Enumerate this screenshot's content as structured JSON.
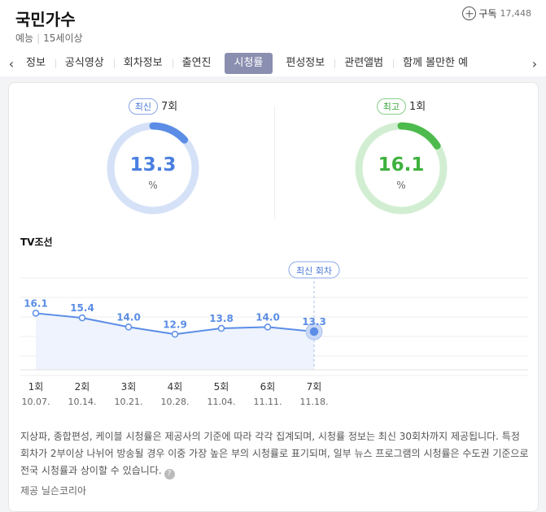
{
  "header": {
    "title": "국민가수",
    "genre": "예능",
    "rating": "15세이상",
    "subscribe_label": "구독",
    "subscribe_count": "17,448"
  },
  "tabs": [
    "정보",
    "공식영상",
    "회차정보",
    "출연진",
    "시청률",
    "편성정보",
    "관련앨범",
    "함께 볼만한 예"
  ],
  "active_tab": "시청률",
  "summary": {
    "latest": {
      "badge": "최신",
      "episode": "7회",
      "value": 13.3,
      "value_text": "13.3",
      "unit": "%",
      "color": "#5b8de6",
      "track_color": "#d5e1f7"
    },
    "best": {
      "badge": "최고",
      "episode": "1회",
      "value": 16.1,
      "value_text": "16.1",
      "unit": "%",
      "color": "#4dba4d",
      "track_color": "#d2eed2"
    }
  },
  "channel": "TV조선",
  "latest_marker_label": "최신 회차",
  "chart_data": {
    "type": "line",
    "categories": [
      "1회",
      "2회",
      "3회",
      "4회",
      "5회",
      "6회",
      "7회"
    ],
    "dates": [
      "10.07.",
      "10.14.",
      "10.21.",
      "10.28.",
      "11.04.",
      "11.11.",
      "11.18."
    ],
    "values": [
      16.1,
      15.4,
      14.0,
      12.9,
      13.8,
      14.0,
      13.3
    ],
    "labels": [
      "16.1",
      "15.4",
      "14.0",
      "12.9",
      "13.8",
      "14.0",
      "13.3"
    ],
    "color": "#5b8de6",
    "area_color": "#eef3fd",
    "grid": true
  },
  "notice": "지상파, 종합편성, 케이블 시청률은 제공사의 기준에 따라 각각 집계되며, 시청률 정보는 최신 30회차까지 제공됩니다. 특정 회차가 2부이상 나뉘어 방송될 경우 이중 가장 높은 부의 시청률로 표기되며, 일부 뉴스 프로그램의 시청률은 수도권 기준으로 전국 시청률과 상이할 수 있습니다.",
  "help_glyph": "?",
  "source": "제공 닐슨코리아",
  "nav": {
    "prev_glyph": "‹",
    "next_glyph": "›"
  }
}
